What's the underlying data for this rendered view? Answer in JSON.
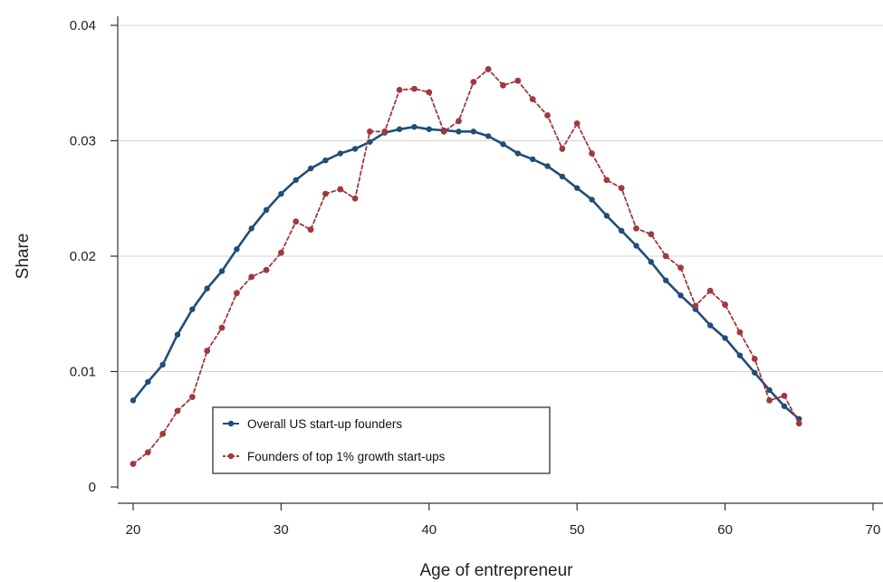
{
  "chart_data": {
    "type": "line",
    "title": "",
    "xlabel": "Age of entrepreneur",
    "ylabel": "Share",
    "xlim": [
      19,
      70
    ],
    "ylim": [
      0,
      0.04
    ],
    "xticks": [
      20,
      30,
      40,
      50,
      60,
      70
    ],
    "xtick_labels": [
      "20",
      "30",
      "40",
      "50",
      "60",
      "70"
    ],
    "yticks": [
      0,
      0.01,
      0.02,
      0.03,
      0.04
    ],
    "ytick_labels": [
      "0",
      "0.01",
      "0.02",
      "0.03",
      "0.04"
    ],
    "grid": "horizontal",
    "legend_position": "bottom-left",
    "x": [
      20,
      21,
      22,
      23,
      24,
      25,
      26,
      27,
      28,
      29,
      30,
      31,
      32,
      33,
      34,
      35,
      36,
      37,
      38,
      39,
      40,
      41,
      42,
      43,
      44,
      45,
      46,
      47,
      48,
      49,
      50,
      51,
      52,
      53,
      54,
      55,
      56,
      57,
      58,
      59,
      60,
      61,
      62,
      63,
      64,
      65
    ],
    "series": [
      {
        "name": "Overall US start-up founders",
        "color": "#1f4e79",
        "style": "solid",
        "values": [
          0.0075,
          0.0091,
          0.0106,
          0.0132,
          0.0154,
          0.0172,
          0.0187,
          0.0206,
          0.0224,
          0.024,
          0.0254,
          0.0266,
          0.0276,
          0.0283,
          0.0289,
          0.0293,
          0.0299,
          0.0307,
          0.031,
          0.0312,
          0.031,
          0.0309,
          0.0308,
          0.0308,
          0.0304,
          0.0297,
          0.0289,
          0.0284,
          0.0278,
          0.0269,
          0.0259,
          0.0249,
          0.0235,
          0.0222,
          0.0209,
          0.0195,
          0.0179,
          0.0166,
          0.0154,
          0.014,
          0.0129,
          0.0114,
          0.0099,
          0.0084,
          0.007,
          0.0059
        ]
      },
      {
        "name": "Founders of top 1% growth start-ups",
        "color": "#a0393f",
        "style": "dashed",
        "values": [
          0.002,
          0.003,
          0.0046,
          0.0066,
          0.0078,
          0.0118,
          0.0138,
          0.0168,
          0.0182,
          0.0188,
          0.0203,
          0.023,
          0.0223,
          0.0254,
          0.0258,
          0.025,
          0.0308,
          0.0308,
          0.0344,
          0.0345,
          0.0342,
          0.0308,
          0.0317,
          0.0351,
          0.0362,
          0.0348,
          0.0352,
          0.0336,
          0.0322,
          0.0293,
          0.0315,
          0.0289,
          0.0266,
          0.0259,
          0.0224,
          0.0219,
          0.02,
          0.019,
          0.0157,
          0.017,
          0.0158,
          0.0134,
          0.0111,
          0.0075,
          0.0079,
          0.0055
        ]
      }
    ]
  }
}
